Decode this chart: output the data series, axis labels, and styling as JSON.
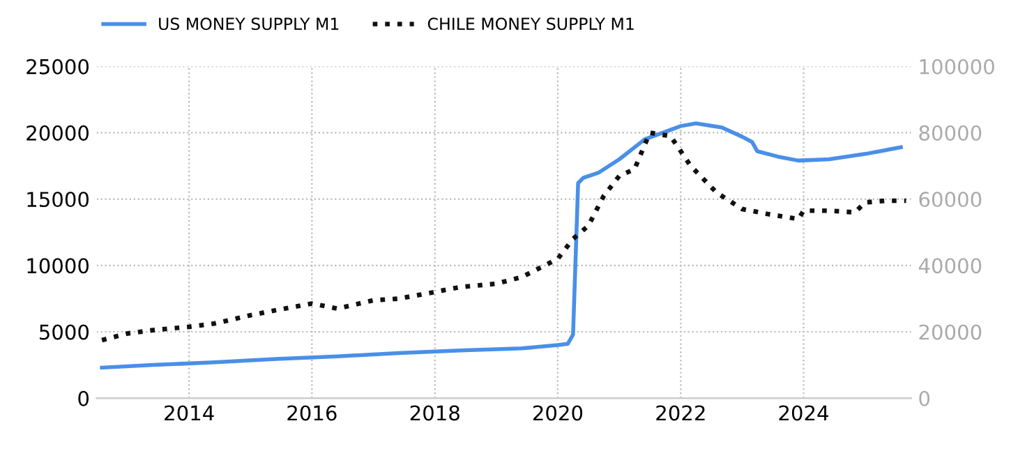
{
  "chart_data": {
    "type": "line",
    "xlim": [
      "2012-07",
      "2025-10"
    ],
    "xticks": [
      {
        "value": "2014-01",
        "label": "2014"
      },
      {
        "value": "2016-01",
        "label": "2016"
      },
      {
        "value": "2018-01",
        "label": "2018"
      },
      {
        "value": "2020-01",
        "label": "2020"
      },
      {
        "value": "2022-01",
        "label": "2022"
      },
      {
        "value": "2024-01",
        "label": "2024"
      }
    ],
    "ylim": [
      0,
      25000
    ],
    "yticks": [
      0,
      5000,
      10000,
      15000,
      20000,
      25000
    ],
    "y2lim": [
      0,
      100000
    ],
    "y2ticks": [
      0,
      20000,
      40000,
      60000,
      80000,
      100000
    ],
    "grid": true,
    "legend": "top left",
    "series": [
      {
        "name": "US MONEY SUPPLY M1",
        "color": "#4a8fe8",
        "line_style": "solid",
        "axis": "y",
        "x": [
          "2012-08",
          "2013-06",
          "2014-06",
          "2015-06",
          "2016-06",
          "2017-06",
          "2018-06",
          "2019-06",
          "2020-01",
          "2020-03",
          "2020-04",
          "2020-05",
          "2020-06",
          "2020-09",
          "2021-01",
          "2021-06",
          "2022-01",
          "2022-04",
          "2022-09",
          "2023-01",
          "2023-03",
          "2023-04",
          "2023-08",
          "2023-12",
          "2024-06",
          "2025-01",
          "2025-08"
        ],
        "values": [
          2300,
          2500,
          2700,
          2950,
          3150,
          3400,
          3600,
          3750,
          4000,
          4100,
          4800,
          16200,
          16600,
          17000,
          18000,
          19500,
          20500,
          20700,
          20400,
          19700,
          19300,
          18600,
          18200,
          17900,
          18000,
          18400,
          18900
        ]
      },
      {
        "name": "CHILE MONEY SUPPLY M1",
        "color": "#111111",
        "line_style": "dotted",
        "axis": "y2",
        "x": [
          "2012-08",
          "2013-01",
          "2013-06",
          "2014-01",
          "2014-06",
          "2015-01",
          "2015-06",
          "2016-01",
          "2016-06",
          "2017-01",
          "2017-06",
          "2018-01",
          "2018-06",
          "2019-01",
          "2019-06",
          "2020-01",
          "2020-04",
          "2020-07",
          "2020-10",
          "2021-01",
          "2021-04",
          "2021-07",
          "2021-11",
          "2022-03",
          "2022-08",
          "2023-01",
          "2023-06",
          "2023-12",
          "2024-01",
          "2024-06",
          "2024-11",
          "2025-01",
          "2025-05",
          "2025-09"
        ],
        "values": [
          17500,
          19500,
          20500,
          21500,
          22500,
          25000,
          26500,
          28500,
          27000,
          29500,
          30000,
          32000,
          33500,
          34500,
          36500,
          42000,
          48000,
          52000,
          61000,
          67000,
          69000,
          80000,
          79000,
          70000,
          62000,
          57000,
          55500,
          54000,
          56500,
          56500,
          56000,
          59000,
          59500,
          59500
        ]
      }
    ]
  }
}
